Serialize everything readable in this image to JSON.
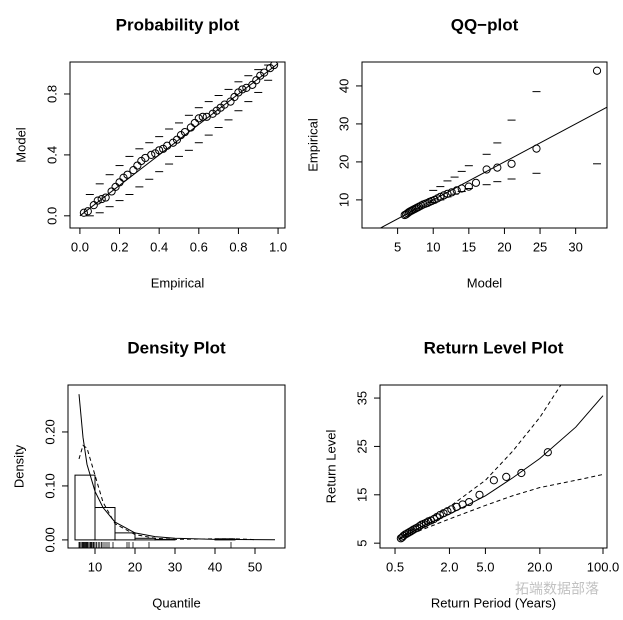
{
  "chart_data": [
    {
      "type": "scatter",
      "title": "Probability plot",
      "x_label": "Empirical",
      "y_label": "Model",
      "color": "#000000",
      "xlim": [
        -0.05,
        1.035
      ],
      "ylim": [
        -0.08,
        1.01
      ],
      "xticks": [
        {
          "value": 0,
          "label": "0.0"
        },
        0.2,
        0.4,
        0.6,
        0.8,
        {
          "value": 1,
          "label": "1.0"
        }
      ],
      "yticks": [
        {
          "value": 0,
          "label": "0.0"
        },
        0.4,
        0.8
      ],
      "series": [
        {
          "style": "points",
          "x": [
            0.02,
            0.04,
            0.07,
            0.09,
            0.11,
            0.13,
            0.16,
            0.18,
            0.2,
            0.22,
            0.24,
            0.27,
            0.29,
            0.31,
            0.33,
            0.36,
            0.38,
            0.4,
            0.42,
            0.44,
            0.47,
            0.49,
            0.51,
            0.53,
            0.56,
            0.58,
            0.6,
            0.62,
            0.64,
            0.67,
            0.69,
            0.71,
            0.73,
            0.76,
            0.78,
            0.8,
            0.82,
            0.84,
            0.87,
            0.89,
            0.91,
            0.93,
            0.96,
            0.98
          ],
          "values": [
            0.02,
            0.03,
            0.07,
            0.1,
            0.11,
            0.12,
            0.16,
            0.19,
            0.22,
            0.25,
            0.27,
            0.3,
            0.33,
            0.36,
            0.38,
            0.4,
            0.41,
            0.43,
            0.44,
            0.46,
            0.48,
            0.5,
            0.53,
            0.55,
            0.58,
            0.61,
            0.64,
            0.65,
            0.65,
            0.67,
            0.69,
            0.71,
            0.73,
            0.75,
            0.78,
            0.81,
            0.83,
            0.84,
            0.86,
            0.89,
            0.92,
            0.94,
            0.97,
            0.99
          ]
        },
        {
          "style": "line",
          "x": [
            0,
            1
          ],
          "values": [
            0,
            1
          ]
        },
        {
          "style": "dashes",
          "x": [
            0.05,
            0.1,
            0.15,
            0.2,
            0.25,
            0.3,
            0.35,
            0.4,
            0.45,
            0.5,
            0.55,
            0.6,
            0.65,
            0.7,
            0.75,
            0.8,
            0.85,
            0.9,
            0.95
          ],
          "values": [
            0.14,
            0.21,
            0.27,
            0.33,
            0.39,
            0.44,
            0.48,
            0.52,
            0.57,
            0.61,
            0.66,
            0.71,
            0.75,
            0.79,
            0.83,
            0.88,
            0.92,
            0.96,
            0.99
          ]
        },
        {
          "style": "dashes",
          "x": [
            0.05,
            0.1,
            0.15,
            0.2,
            0.25,
            0.3,
            0.35,
            0.4,
            0.45,
            0.5,
            0.55,
            0.6,
            0.65,
            0.7,
            0.75,
            0.8,
            0.85,
            0.9,
            0.95
          ],
          "values": [
            0.0,
            0.02,
            0.06,
            0.1,
            0.14,
            0.19,
            0.24,
            0.29,
            0.34,
            0.39,
            0.43,
            0.48,
            0.53,
            0.58,
            0.63,
            0.69,
            0.75,
            0.81,
            0.89
          ]
        }
      ]
    },
    {
      "type": "scatter",
      "title": "QQ−plot",
      "x_label": "Model",
      "y_label": "Empirical",
      "color": "#000000",
      "xlim": [
        0,
        34.4
      ],
      "ylim": [
        2.6,
        46.3
      ],
      "xticks": [
        5,
        10,
        15,
        20,
        25,
        30
      ],
      "yticks": [
        10,
        20,
        30,
        40
      ],
      "series": [
        {
          "style": "points",
          "x": [
            6,
            6.2,
            6.4,
            6.6,
            6.8,
            7,
            7.2,
            7.4,
            7.6,
            7.8,
            8,
            8.3,
            8.6,
            8.9,
            9.2,
            9.5,
            9.8,
            10.2,
            10.6,
            11,
            11.5,
            12,
            12.6,
            13.3,
            14,
            15,
            16,
            17.5,
            19,
            21,
            24.5,
            33
          ],
          "values": [
            6,
            6.2,
            6.5,
            6.8,
            7,
            7.2,
            7.4,
            7.6,
            7.8,
            8,
            8.2,
            8.5,
            8.8,
            9,
            9.2,
            9.5,
            9.7,
            10,
            10.4,
            10.8,
            11.2,
            11.6,
            12,
            12.5,
            13,
            13.5,
            14.5,
            18,
            18.5,
            19.5,
            23.5,
            44
          ]
        },
        {
          "style": "line",
          "x": [
            0,
            34.4
          ],
          "values": [
            0,
            34.4
          ]
        },
        {
          "style": "dashes",
          "x": [
            10,
            11,
            12,
            13,
            14,
            15,
            17.5,
            19,
            21,
            24.5
          ],
          "values": [
            12.5,
            13.5,
            15,
            16,
            17.5,
            19,
            22,
            25,
            31,
            38.5
          ]
        },
        {
          "style": "dashes",
          "x": [
            10,
            11,
            12,
            13,
            14,
            15,
            17.5,
            19,
            21,
            24.5,
            33
          ],
          "values": [
            9.3,
            10,
            10.8,
            11.5,
            12.2,
            13,
            14,
            14.8,
            15.5,
            17,
            19.5
          ]
        }
      ]
    },
    {
      "type": "histogram",
      "title": "Density Plot",
      "x_label": "Quantile",
      "y_label": "Density",
      "color": "#000000",
      "xlim": [
        3.25,
        57.5
      ],
      "ylim": [
        -0.015,
        0.287
      ],
      "xticks": [
        10,
        20,
        30,
        40,
        50
      ],
      "yticks": [
        {
          "value": 0,
          "label": "0.00"
        },
        {
          "value": 0.1,
          "label": "0.10"
        },
        {
          "value": 0.2,
          "label": "0.20"
        }
      ],
      "bins": [
        5,
        10,
        15,
        20,
        25,
        30,
        35,
        40,
        45
      ],
      "values": [
        0.12,
        0.06,
        0.013,
        0.003,
        0.001,
        0,
        0,
        0.002
      ],
      "rug": [
        6,
        6.2,
        6.5,
        6.8,
        7,
        7.2,
        7.4,
        7.6,
        7.8,
        8,
        8.2,
        8.5,
        8.8,
        9,
        9.2,
        9.5,
        9.7,
        10,
        10.4,
        10.8,
        11.2,
        11.6,
        12,
        12.5,
        13,
        13.5,
        14.5,
        18,
        18.5,
        19.5,
        23.5,
        44
      ],
      "series": [
        {
          "style": "line",
          "x": [
            6,
            7,
            8,
            10,
            12,
            15,
            20,
            25,
            30,
            40,
            55
          ],
          "values": [
            0.27,
            0.19,
            0.14,
            0.09,
            0.06,
            0.033,
            0.013,
            0.006,
            0.003,
            0.001,
            0.0003
          ]
        },
        {
          "style": "dashed",
          "x": [
            6,
            7,
            8,
            10,
            12,
            15,
            20,
            25,
            30,
            40,
            45,
            50
          ],
          "values": [
            0.15,
            0.175,
            0.17,
            0.12,
            0.07,
            0.03,
            0.01,
            0.003,
            0.001,
            0.002,
            0.002,
            0.0005
          ]
        }
      ]
    },
    {
      "type": "scatter",
      "title": "Return Level Plot",
      "x_label": "Return Period (Years)",
      "y_label": "Return Level",
      "color": "#000000",
      "xlog": true,
      "xlim": [
        0.341,
        110.7
      ],
      "ylim": [
        4,
        37.7
      ],
      "xticks": [
        0.5,
        {
          "value": 2,
          "label": "2.0"
        },
        {
          "value": 5,
          "label": "5.0"
        },
        {
          "value": 20,
          "label": "20.0"
        },
        {
          "value": 100,
          "label": "100.0"
        }
      ],
      "yticks": [
        5,
        15,
        25,
        35
      ],
      "series": [
        {
          "style": "points",
          "x": [
            0.58,
            0.6,
            0.62,
            0.65,
            0.68,
            0.71,
            0.74,
            0.77,
            0.8,
            0.84,
            0.88,
            0.93,
            0.98,
            1.04,
            1.1,
            1.17,
            1.25,
            1.35,
            1.45,
            1.57,
            1.72,
            1.9,
            2.1,
            2.4,
            2.8,
            3.3,
            4.3,
            6.2,
            8.5,
            12.5,
            24.5
          ],
          "values": [
            6,
            6.2,
            6.5,
            6.8,
            7,
            7.2,
            7.4,
            7.6,
            7.8,
            8,
            8.2,
            8.5,
            8.8,
            9,
            9.2,
            9.5,
            9.7,
            10,
            10.4,
            10.8,
            11.2,
            11.6,
            12,
            12.5,
            13,
            13.5,
            15,
            18,
            18.7,
            19.5,
            23.8
          ]
        },
        {
          "style": "line",
          "x": [
            0.55,
            1,
            2,
            5,
            10,
            20,
            50,
            100
          ],
          "values": [
            5.8,
            8.5,
            11,
            14.8,
            18.5,
            22.5,
            29,
            35.5
          ]
        },
        {
          "style": "dashed",
          "x": [
            0.55,
            1,
            2,
            5,
            10,
            20,
            35
          ],
          "values": [
            5.9,
            9.2,
            12.5,
            18,
            24,
            31,
            38
          ]
        },
        {
          "style": "dashed",
          "x": [
            0.55,
            1,
            2,
            5,
            10,
            20,
            50,
            100
          ],
          "values": [
            5.7,
            7.8,
            10,
            12.8,
            14.8,
            16.5,
            18,
            19.2
          ]
        }
      ]
    }
  ],
  "watermark": "拓端数据部落"
}
